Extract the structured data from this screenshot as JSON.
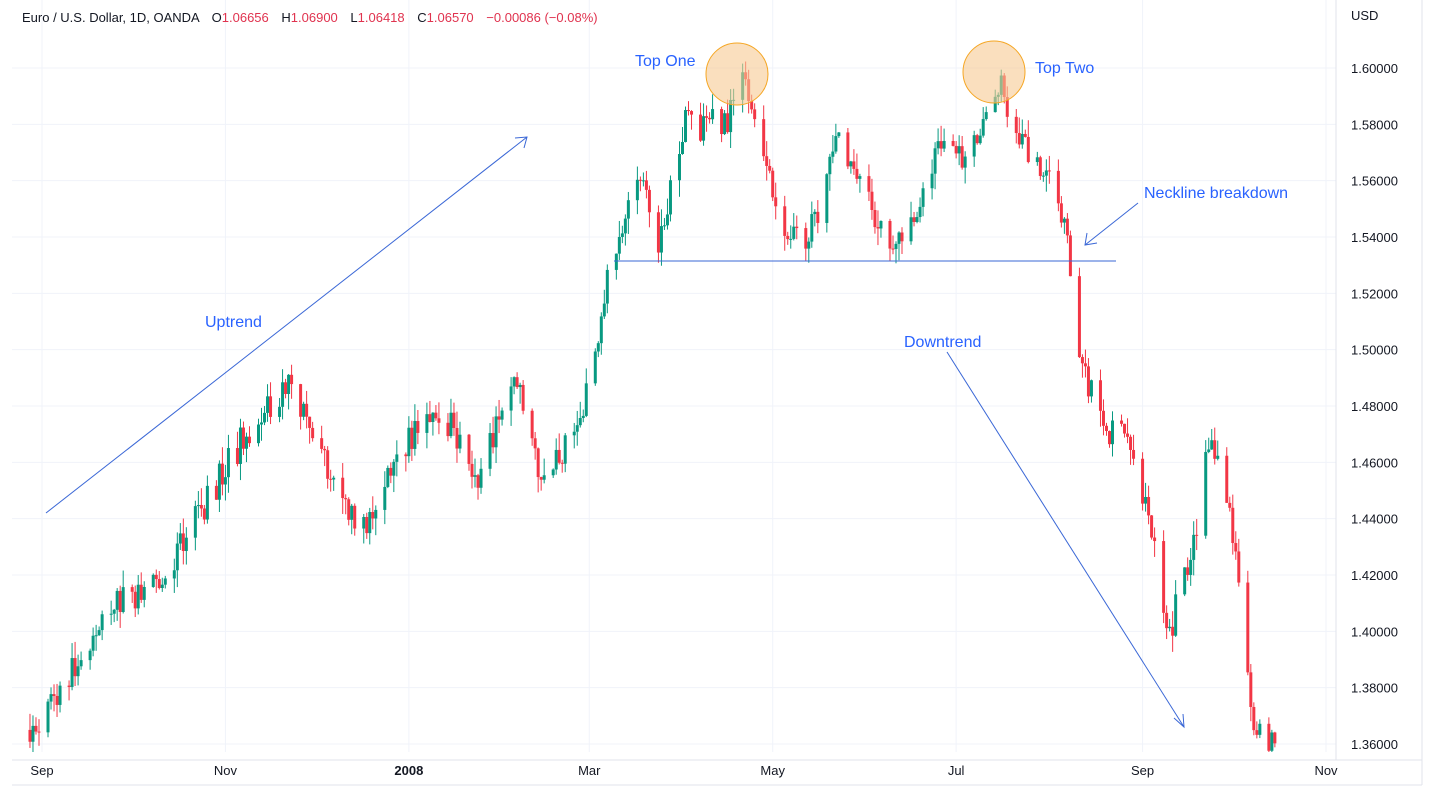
{
  "header": {
    "symbol": "Euro / U.S. Dollar, 1D, OANDA",
    "o_label": "O",
    "o_value": "1.06656",
    "h_label": "H",
    "h_value": "1.06900",
    "l_label": "L",
    "l_value": "1.06418",
    "c_label": "C",
    "c_value": "1.06570",
    "change": "−0.00086 (−0.08%)"
  },
  "currency": "USD",
  "colors": {
    "up": "#089981",
    "down": "#f23645",
    "annotation": "#3a67d6",
    "annotation_text": "#2962ff",
    "marker_fill": "#f7c992",
    "marker_stroke": "#f5a623",
    "grid": "#f0f3fa"
  },
  "chart_data": {
    "type": "candlestick",
    "title": "Euro / U.S. Dollar, 1D, OANDA",
    "y_axis": {
      "unit": "USD",
      "range": [
        1.355,
        1.62
      ],
      "ticks": [
        "1.36000",
        "1.38000",
        "1.40000",
        "1.42000",
        "1.44000",
        "1.46000",
        "1.48000",
        "1.50000",
        "1.52000",
        "1.54000",
        "1.56000",
        "1.58000",
        "1.60000"
      ]
    },
    "x_axis": {
      "labels": [
        "Sep",
        "Nov",
        "2008",
        "Mar",
        "May",
        "Jul",
        "Sep",
        "Nov"
      ],
      "bold_label": "2008"
    },
    "grid": true,
    "last_close": 1.0657,
    "trend_path": [
      [
        "2007-08-28",
        1.365
      ],
      [
        "2007-09-10",
        1.385
      ],
      [
        "2007-09-24",
        1.41
      ],
      [
        "2007-10-08",
        1.415
      ],
      [
        "2007-10-22",
        1.44
      ],
      [
        "2007-11-05",
        1.465
      ],
      [
        "2007-11-22",
        1.49
      ],
      [
        "2007-12-05",
        1.46
      ],
      [
        "2007-12-17",
        1.435
      ],
      [
        "2008-01-02",
        1.47
      ],
      [
        "2008-01-15",
        1.475
      ],
      [
        "2008-01-24",
        1.455
      ],
      [
        "2008-02-05",
        1.49
      ],
      [
        "2008-02-15",
        1.45
      ],
      [
        "2008-02-28",
        1.48
      ],
      [
        "2008-03-10",
        1.54
      ],
      [
        "2008-03-18",
        1.565
      ],
      [
        "2008-03-24",
        1.535
      ],
      [
        "2008-04-02",
        1.58
      ],
      [
        "2008-04-15",
        1.58
      ],
      [
        "2008-04-22",
        1.595
      ],
      [
        "2008-05-02",
        1.55
      ],
      [
        "2008-05-12",
        1.535
      ],
      [
        "2008-05-23",
        1.575
      ],
      [
        "2008-06-05",
        1.545
      ],
      [
        "2008-06-13",
        1.538
      ],
      [
        "2008-06-26",
        1.575
      ],
      [
        "2008-07-04",
        1.57
      ],
      [
        "2008-07-15",
        1.595
      ],
      [
        "2008-07-25",
        1.57
      ],
      [
        "2008-08-04",
        1.555
      ],
      [
        "2008-08-07",
        1.54
      ],
      [
        "2008-08-11",
        1.5
      ],
      [
        "2008-08-19",
        1.47
      ],
      [
        "2008-08-28",
        1.47
      ],
      [
        "2008-09-10",
        1.4
      ],
      [
        "2008-09-18",
        1.43
      ],
      [
        "2008-09-23",
        1.47
      ],
      [
        "2008-09-30",
        1.44
      ],
      [
        "2008-10-08",
        1.37
      ],
      [
        "2008-10-15",
        1.36
      ]
    ],
    "annotations": [
      {
        "text": "Top One",
        "x": "2008-04-15",
        "y": 1.595
      },
      {
        "text": "Top Two",
        "x": "2008-07-15",
        "y": 1.595
      },
      {
        "text": "Neckline breakdown",
        "x": "2008-08-26",
        "y": 1.541
      },
      {
        "text": "Uptrend",
        "x": "2007-11-20",
        "y": 1.51
      },
      {
        "text": "Downtrend",
        "x": "2008-06-10",
        "y": 1.503
      },
      {
        "text": "Neckline",
        "x": "2008-03-12",
        "y": 1.5313
      }
    ]
  }
}
